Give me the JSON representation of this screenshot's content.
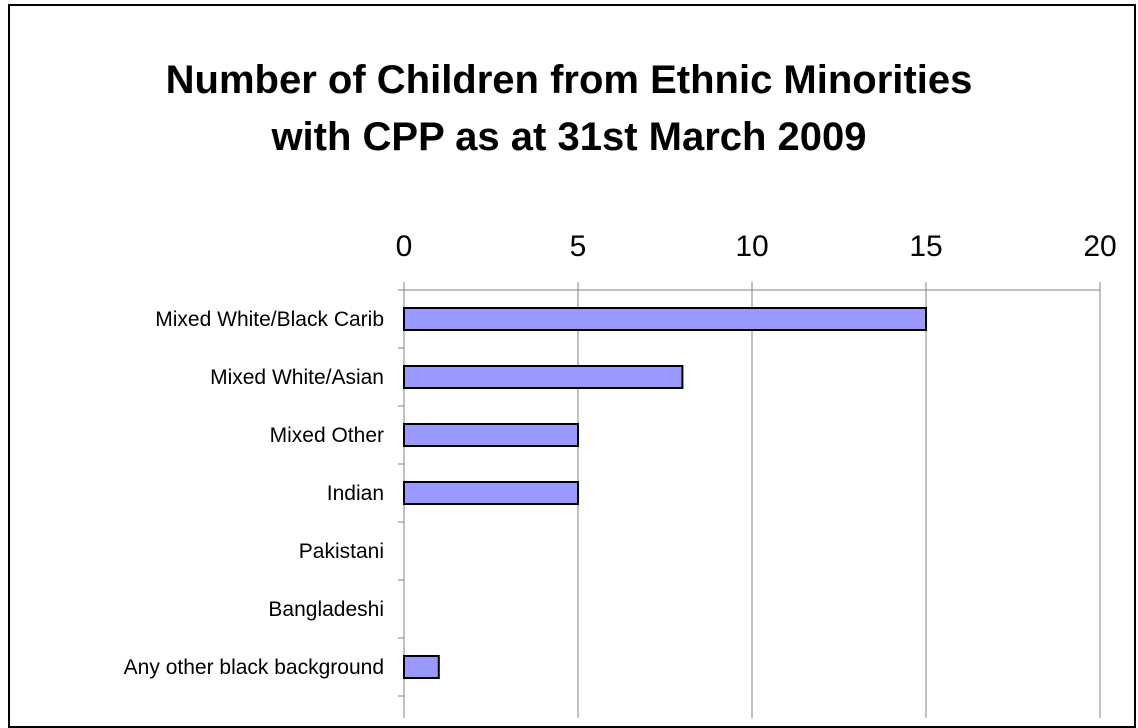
{
  "chart_data": {
    "type": "bar",
    "orientation": "horizontal",
    "title": "Number of Children from Ethnic Minorities with CPP as at 31st March 2009",
    "title_lines": [
      "Number of Children from Ethnic Minorities",
      "with CPP as at 31st March 2009"
    ],
    "xlabel": "",
    "ylabel": "",
    "categories": [
      "Mixed White/Black Carib",
      "Mixed White/Asian",
      "Mixed Other",
      "Indian",
      "Pakistani",
      "Bangladeshi",
      "Any other black background"
    ],
    "values": [
      15,
      8,
      5,
      5,
      0,
      0,
      1
    ],
    "value_axis": {
      "range": [
        0,
        20
      ],
      "ticks": [
        0,
        5,
        10,
        15,
        20
      ],
      "position": "top"
    },
    "grid": true,
    "legend": "none",
    "colors": {
      "bar_fill": "#9999ff",
      "bar_stroke": "#000000",
      "grid": "#808080",
      "frame": "#000000"
    }
  }
}
